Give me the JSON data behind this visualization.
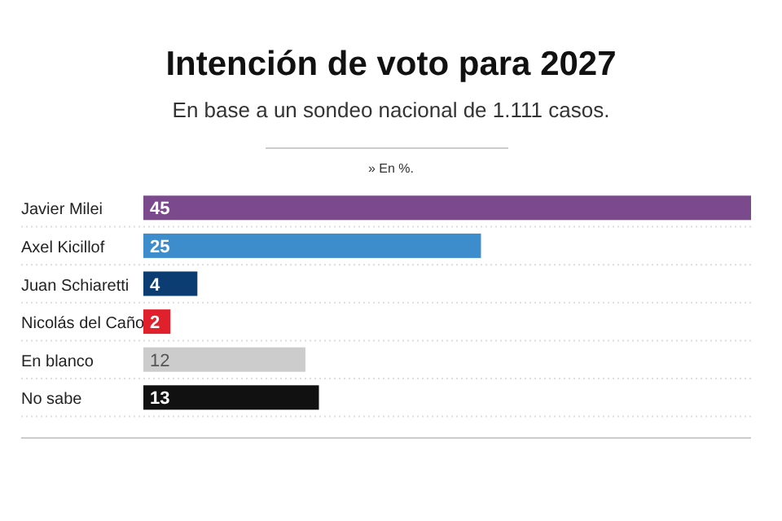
{
  "chart_data": {
    "type": "bar",
    "orientation": "horizontal",
    "title": "Intención de voto para 2027",
    "subtitle": "En base a un sondeo nacional de 1.111 casos.",
    "annotations": [
      "» En %."
    ],
    "categories": [
      "Javier Milei",
      "Axel Kicillof",
      "Juan Schiaretti",
      "Nicolás del Caño",
      "En blanco",
      "No sabe"
    ],
    "values": [
      45,
      25,
      4,
      2,
      12,
      13
    ],
    "colors": [
      "#7b4a8c",
      "#3d8ccc",
      "#0b3d73",
      "#e0202a",
      "#cccccc",
      "#111111"
    ],
    "xlim": [
      0,
      45
    ],
    "data_labels": true,
    "tick_labels": "y"
  }
}
